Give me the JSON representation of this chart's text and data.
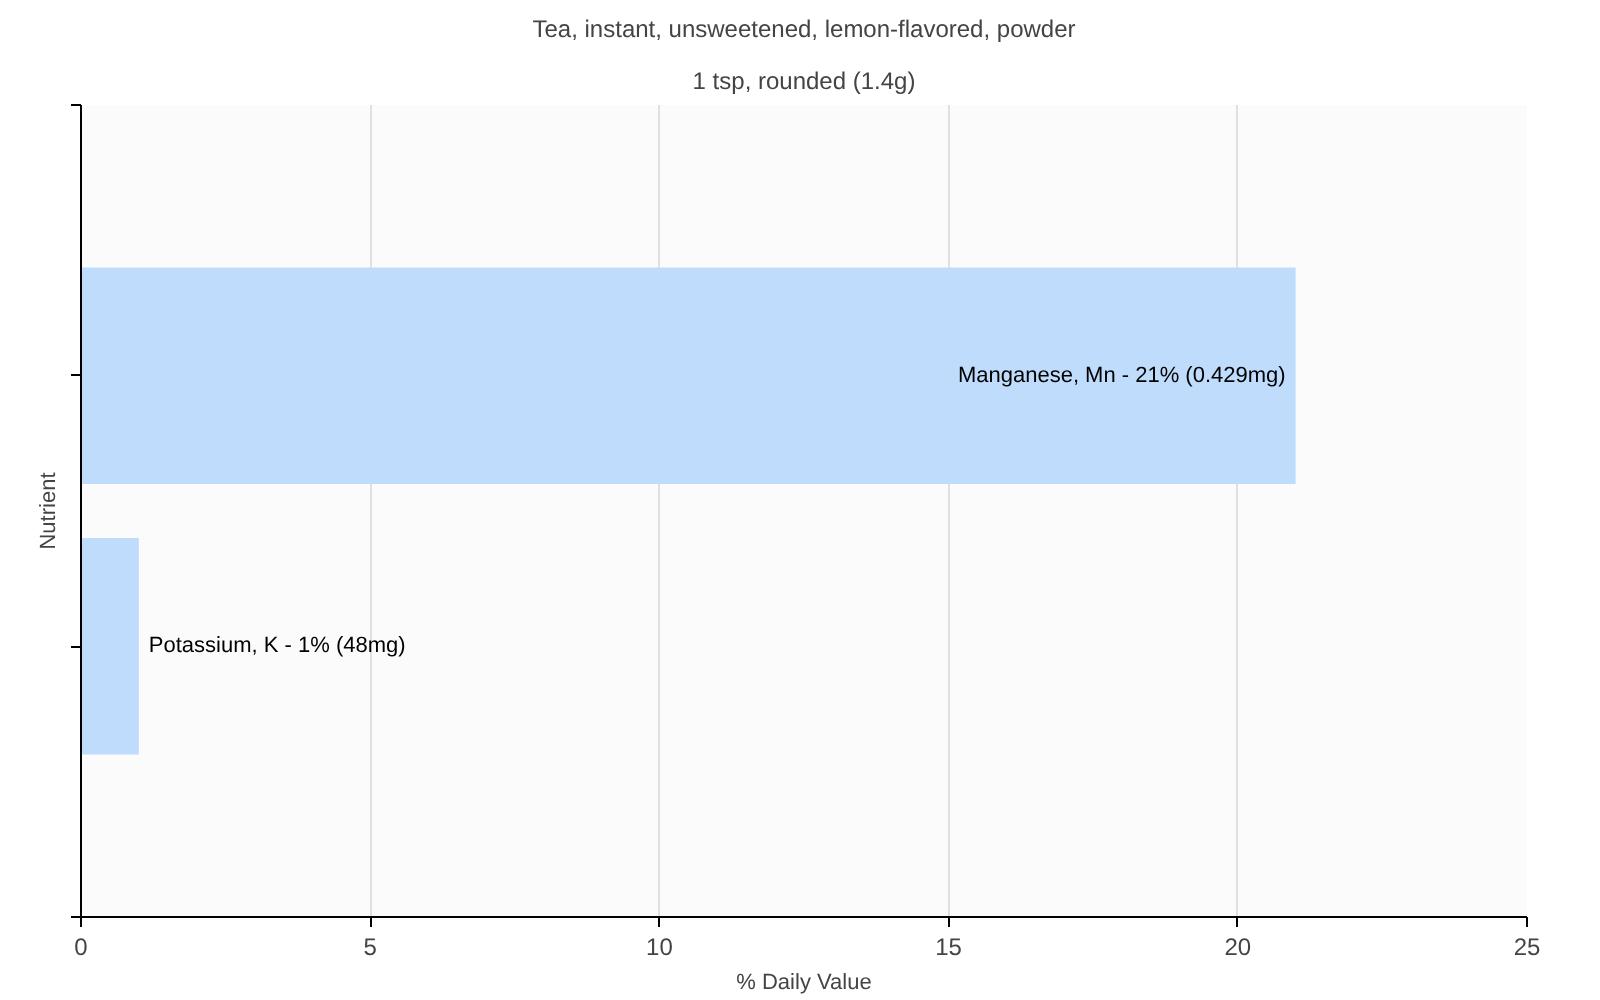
{
  "chart_data": {
    "type": "bar",
    "orientation": "horizontal",
    "title": "Tea, instant, unsweetened, lemon-flavored, powder",
    "subtitle": "1 tsp, rounded (1.4g)",
    "xlabel": "% Daily Value",
    "ylabel": "Nutrient",
    "categories": [
      "Manganese, Mn -",
      "Potassium, K -"
    ],
    "values": [
      21,
      1
    ],
    "value_labels": [
      "21% (0.429mg)",
      "1% (48mg)"
    ],
    "color": "#bfdcfd",
    "xlim": [
      0,
      25
    ],
    "xticks": [
      0,
      5,
      10,
      15,
      20,
      25
    ],
    "grid": "x"
  }
}
